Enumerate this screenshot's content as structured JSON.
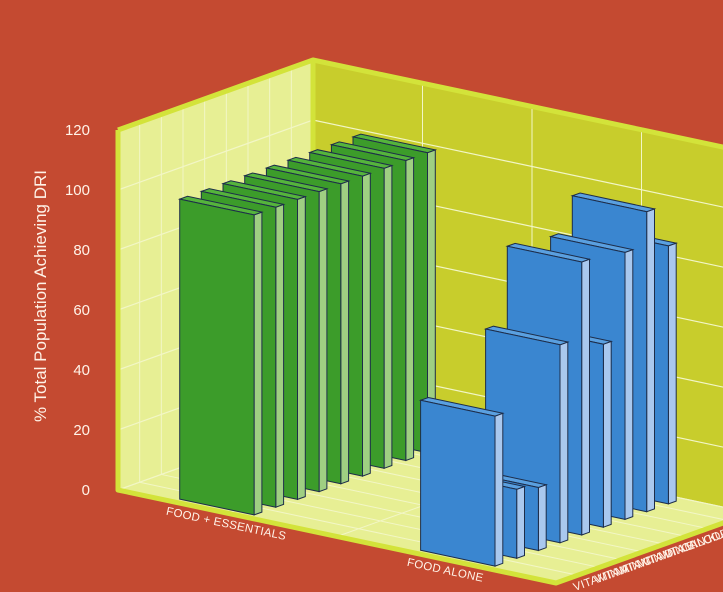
{
  "chart_data": {
    "type": "bar",
    "subtype": "3d-column",
    "title": "",
    "xlabel": "",
    "ylabel": "% Total Population Achieving DRI",
    "ylim": [
      0,
      120
    ],
    "yticks": [
      0,
      20,
      40,
      60,
      80,
      100,
      120
    ],
    "categories": [
      "FOOD + ESSENTIALS",
      "FOOD ALONE"
    ],
    "series": [
      {
        "name": "VITAMIN A",
        "values": [
          100,
          50
        ]
      },
      {
        "name": "VITAMIN C",
        "values": [
          100,
          23
        ]
      },
      {
        "name": "VITAMIN D",
        "values": [
          100,
          21
        ]
      },
      {
        "name": "VITAMIN E",
        "values": [
          100,
          66
        ]
      },
      {
        "name": "VITAMIN K",
        "values": [
          100,
          91
        ]
      },
      {
        "name": "CALCIUM",
        "values": [
          100,
          61
        ]
      },
      {
        "name": "COPPER",
        "values": [
          100,
          89
        ]
      },
      {
        "name": "SELENIUM",
        "values": [
          100,
          100
        ]
      },
      {
        "name": "ZINC",
        "values": [
          100,
          86
        ]
      }
    ],
    "grid": true,
    "colors": {
      "background": "#c44a31",
      "wall": "#c8cd2c",
      "floor": "#e7ef94",
      "grid_line": "#f2f6c6",
      "frame": "#d3e33a",
      "green_front": "#3c9c2a",
      "green_side": "#9fcf82",
      "green_top": "#55b43c",
      "blue_front": "#3a86d0",
      "blue_side": "#a9c8ee",
      "blue_top": "#5aa0e0",
      "text": "#fff3e8"
    }
  }
}
